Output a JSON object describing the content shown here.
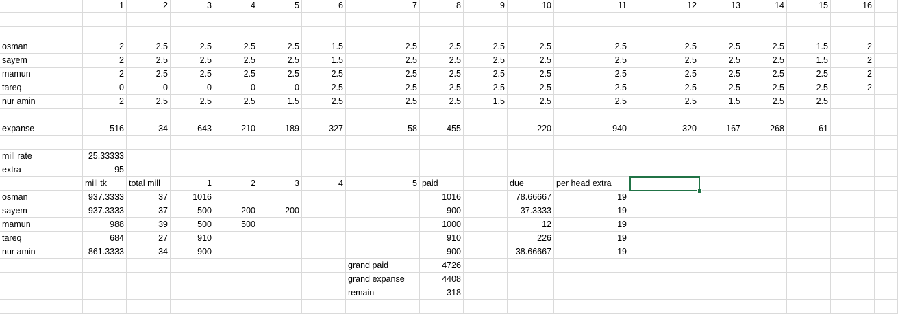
{
  "colors": {
    "gridline": "#dadada",
    "selection": "#217346"
  },
  "rows": [
    [
      null,
      "1",
      "2",
      "3",
      "4",
      "5",
      "6",
      "7",
      "8",
      "9",
      "10",
      "11",
      "12",
      "13",
      "14",
      "15",
      "16",
      null
    ],
    [],
    [],
    [
      "osman",
      "2",
      "2.5",
      "2.5",
      "2.5",
      "2.5",
      "1.5",
      "2.5",
      "2.5",
      "2.5",
      "2.5",
      "2.5",
      "2.5",
      "2.5",
      "2.5",
      "1.5",
      "2"
    ],
    [
      "sayem",
      "2",
      "2.5",
      "2.5",
      "2.5",
      "2.5",
      "1.5",
      "2.5",
      "2.5",
      "2.5",
      "2.5",
      "2.5",
      "2.5",
      "2.5",
      "2.5",
      "1.5",
      "2"
    ],
    [
      "mamun",
      "2",
      "2.5",
      "2.5",
      "2.5",
      "2.5",
      "2.5",
      "2.5",
      "2.5",
      "2.5",
      "2.5",
      "2.5",
      "2.5",
      "2.5",
      "2.5",
      "2.5",
      "2"
    ],
    [
      "tareq",
      "0",
      "0",
      "0",
      "0",
      "0",
      "2.5",
      "2.5",
      "2.5",
      "2.5",
      "2.5",
      "2.5",
      "2.5",
      "2.5",
      "2.5",
      "2.5",
      "2"
    ],
    [
      "nur amin",
      "2",
      "2.5",
      "2.5",
      "2.5",
      "1.5",
      "2.5",
      "2.5",
      "2.5",
      "1.5",
      "2.5",
      "2.5",
      "2.5",
      "1.5",
      "2.5",
      "2.5",
      null
    ],
    [],
    [
      "expanse",
      "516",
      "34",
      "643",
      "210",
      "189",
      "327",
      "58",
      "455",
      null,
      "220",
      "940",
      "320",
      "167",
      "268",
      "61",
      null
    ],
    [],
    [
      "mill rate",
      "25.33333"
    ],
    [
      "extra",
      "95"
    ],
    [
      null,
      "mill tk",
      "total mill",
      "1",
      "2",
      "3",
      "4",
      "5",
      "paid",
      null,
      "due",
      "per head extra",
      null
    ],
    [
      "osman",
      "937.3333",
      "37",
      "1016",
      null,
      null,
      null,
      null,
      "1016",
      null,
      "78.66667",
      "19"
    ],
    [
      "sayem",
      "937.3333",
      "37",
      "500",
      "200",
      "200",
      null,
      null,
      "900",
      null,
      "-37.3333",
      "19"
    ],
    [
      "mamun",
      "988",
      "39",
      "500",
      "500",
      null,
      null,
      null,
      "1000",
      null,
      "12",
      "19"
    ],
    [
      "tareq",
      "684",
      "27",
      "910",
      null,
      null,
      null,
      null,
      "910",
      null,
      "226",
      "19"
    ],
    [
      "nur amin",
      "861.3333",
      "34",
      "900",
      null,
      null,
      null,
      null,
      "900",
      null,
      "38.66667",
      "19"
    ],
    [
      null,
      null,
      null,
      null,
      null,
      null,
      null,
      "grand paid",
      "4726"
    ],
    [
      null,
      null,
      null,
      null,
      null,
      null,
      null,
      "grand expanse",
      "4408"
    ],
    [
      null,
      null,
      null,
      null,
      null,
      null,
      null,
      "remain",
      "318"
    ],
    []
  ]
}
